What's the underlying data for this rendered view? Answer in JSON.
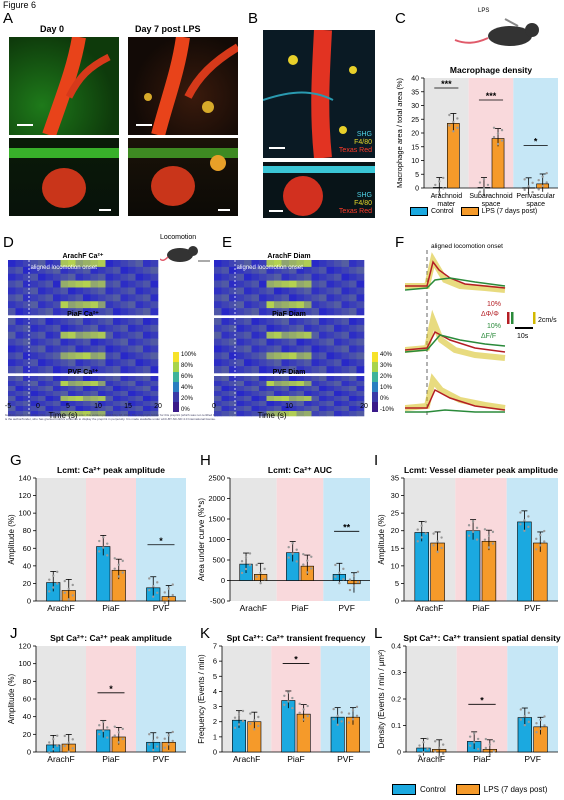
{
  "figure_label": "Figure 6",
  "panels": {
    "A": {
      "letter": "A",
      "day0": "Day 0",
      "day7": "Day 7 post LPS"
    },
    "B": {
      "letter": "B",
      "legend_top": [
        "SHG",
        "F4/80",
        "Texas Red"
      ],
      "legend_bottom": [
        "SHG",
        "F4/80",
        "Texas Red"
      ]
    },
    "C": {
      "letter": "C",
      "lps_label": "LPS"
    },
    "D": {
      "letter": "D",
      "locomotion": "Locomotion",
      "h1": "ArachF Ca²⁺",
      "aligned": "aligned locomotion onset",
      "h2": "PiaF Ca²⁺",
      "h3": "PVF Ca²⁺",
      "xticks": [
        "-5",
        "0",
        "5",
        "10",
        "15",
        "20"
      ],
      "xlabel": "Time (s)",
      "cbar": [
        "100%",
        "80%",
        "60%",
        "40%",
        "20%",
        "0%"
      ],
      "watermark": "bioRxiv preprint doi: https://doi.org/10.1101/2025.05.13.xxxx; this version posted May 18, 2025. The copyright holder for this preprint (which was not certified by peer review) is the author/funder, who has granted bioRxiv a license to display the preprint in perpetuity. It is made available under aCC-BY-NC-ND 4.0 International license."
    },
    "E": {
      "letter": "E",
      "h1": "ArachF Diam",
      "aligned": "aligned locomotion onset",
      "h2": "PiaF Diam",
      "h3": "PVF Diam",
      "xticks": [
        "0",
        "10",
        "20"
      ],
      "xlabel": "Time (s)",
      "cbar": [
        "40%",
        "30%",
        "20%",
        "10%",
        "0%",
        "-10%"
      ]
    },
    "F": {
      "letter": "F",
      "aligned": "aligned locomotion onset",
      "s1": "10%",
      "s1b": "ΔΦ/Φ",
      "s2": "10%",
      "s2b": "ΔF/F",
      "s3": "2cm/s",
      "s4": "10s"
    },
    "G": {
      "letter": "G"
    },
    "H": {
      "letter": "H"
    },
    "I": {
      "letter": "I"
    },
    "J": {
      "letter": "J"
    },
    "K": {
      "letter": "K"
    },
    "L": {
      "letter": "L"
    }
  },
  "legend": {
    "control": "Control",
    "lps": "LPS (7 days post)"
  },
  "colors": {
    "control": "#1ba9e0",
    "lps": "#f59a2a",
    "grey_bg": "#e6e6e6",
    "pink_bg": "#f9d9dc",
    "blue_bg": "#c6e7f6"
  },
  "chart_data": [
    {
      "id": "C",
      "type": "bar",
      "title": "Macrophage density",
      "ylabel": "Macrophage area / total area (%)",
      "ylim": [
        0,
        40
      ],
      "yticks": [
        "0",
        "5",
        "10",
        "15",
        "20",
        "25",
        "30",
        "35",
        "40"
      ],
      "categories": [
        "Arachnoid\nmater",
        "Subarachnoid\nspace",
        "Perivascular\nspace"
      ],
      "series": [
        {
          "name": "Control",
          "values": [
            0.2,
            0.2,
            0.1
          ]
        },
        {
          "name": "LPS (7 days post)",
          "values": [
            23.5,
            18,
            1.5
          ]
        }
      ],
      "significance": [
        "***",
        "***",
        "*"
      ]
    },
    {
      "id": "G",
      "type": "bar",
      "title": "Lcmt: Ca²⁺ peak amplitude",
      "ylabel": "Amplitude (%)",
      "ylim": [
        0,
        140
      ],
      "yticks": [
        "0",
        "20",
        "40",
        "60",
        "80",
        "100",
        "120",
        "140"
      ],
      "categories": [
        "ArachF",
        "PiaF",
        "PVF"
      ],
      "series": [
        {
          "name": "Control",
          "values": [
            21,
            62,
            15
          ]
        },
        {
          "name": "LPS (7 days post)",
          "values": [
            12,
            35,
            5
          ]
        }
      ],
      "significance": [
        "",
        "",
        "*"
      ]
    },
    {
      "id": "H",
      "type": "bar",
      "title": "Lcmt: Ca²⁺ AUC",
      "ylabel": "Area under curve (%*s)",
      "ylim": [
        -500,
        2500
      ],
      "yticks": [
        "-500",
        "0",
        "500",
        "1000",
        "1500",
        "2000",
        "2500"
      ],
      "categories": [
        "ArachF",
        "PiaF",
        "PVF"
      ],
      "series": [
        {
          "name": "Control",
          "values": [
            400,
            680,
            150
          ]
        },
        {
          "name": "LPS (7 days post)",
          "values": [
            150,
            350,
            -80
          ]
        }
      ],
      "significance": [
        "",
        "",
        "**"
      ]
    },
    {
      "id": "I",
      "type": "bar",
      "title": "Lcmt: Vessel diameter peak amplitude",
      "ylabel": "Amplitude (%)",
      "ylim": [
        0,
        35
      ],
      "yticks": [
        "0",
        "5",
        "10",
        "15",
        "20",
        "25",
        "30",
        "35"
      ],
      "categories": [
        "ArachF",
        "PiaF",
        "PVF"
      ],
      "series": [
        {
          "name": "Control",
          "values": [
            19.5,
            20,
            22.5
          ]
        },
        {
          "name": "LPS (7 days post)",
          "values": [
            16.5,
            17,
            16.5
          ]
        }
      ],
      "significance": [
        "",
        "",
        ""
      ]
    },
    {
      "id": "J",
      "type": "bar",
      "title": "Spt Ca²⁺: Ca²⁺ peak amplitude",
      "ylabel": "Amplitude (%)",
      "ylim": [
        0,
        120
      ],
      "yticks": [
        "0",
        "20",
        "40",
        "60",
        "80",
        "100",
        "120"
      ],
      "categories": [
        "ArachF",
        "PiaF",
        "PVF"
      ],
      "series": [
        {
          "name": "Control",
          "values": [
            8,
            25,
            11
          ]
        },
        {
          "name": "LPS (7 days post)",
          "values": [
            9,
            17,
            11
          ]
        }
      ],
      "significance": [
        "",
        "*",
        ""
      ]
    },
    {
      "id": "K",
      "type": "bar",
      "title": "Spt Ca²⁺: Ca²⁺ transient frequency",
      "ylabel": "Frequency (Events / min)",
      "ylim": [
        0,
        7
      ],
      "yticks": [
        "0",
        "1",
        "2",
        "3",
        "4",
        "5",
        "6",
        "7"
      ],
      "categories": [
        "ArachF",
        "PiaF",
        "PVF"
      ],
      "series": [
        {
          "name": "Control",
          "values": [
            2.1,
            3.4,
            2.3
          ]
        },
        {
          "name": "LPS (7 days post)",
          "values": [
            2.0,
            2.5,
            2.3
          ]
        }
      ],
      "significance": [
        "",
        "*",
        ""
      ]
    },
    {
      "id": "L",
      "type": "bar",
      "title": "Spt Ca²⁺: Ca²⁺ transient spatial density",
      "ylabel": "Density (Events / min / μm²)",
      "ylim": [
        0,
        0.4
      ],
      "yticks": [
        "0",
        "0.1",
        "0.2",
        "0.3",
        "0.4"
      ],
      "categories": [
        "ArachF",
        "PiaF",
        "PVF"
      ],
      "series": [
        {
          "name": "Control",
          "values": [
            0.015,
            0.04,
            0.13
          ]
        },
        {
          "name": "LPS (7 days post)",
          "values": [
            0.01,
            0.01,
            0.095
          ]
        }
      ],
      "significance": [
        "",
        "*",
        ""
      ]
    }
  ]
}
